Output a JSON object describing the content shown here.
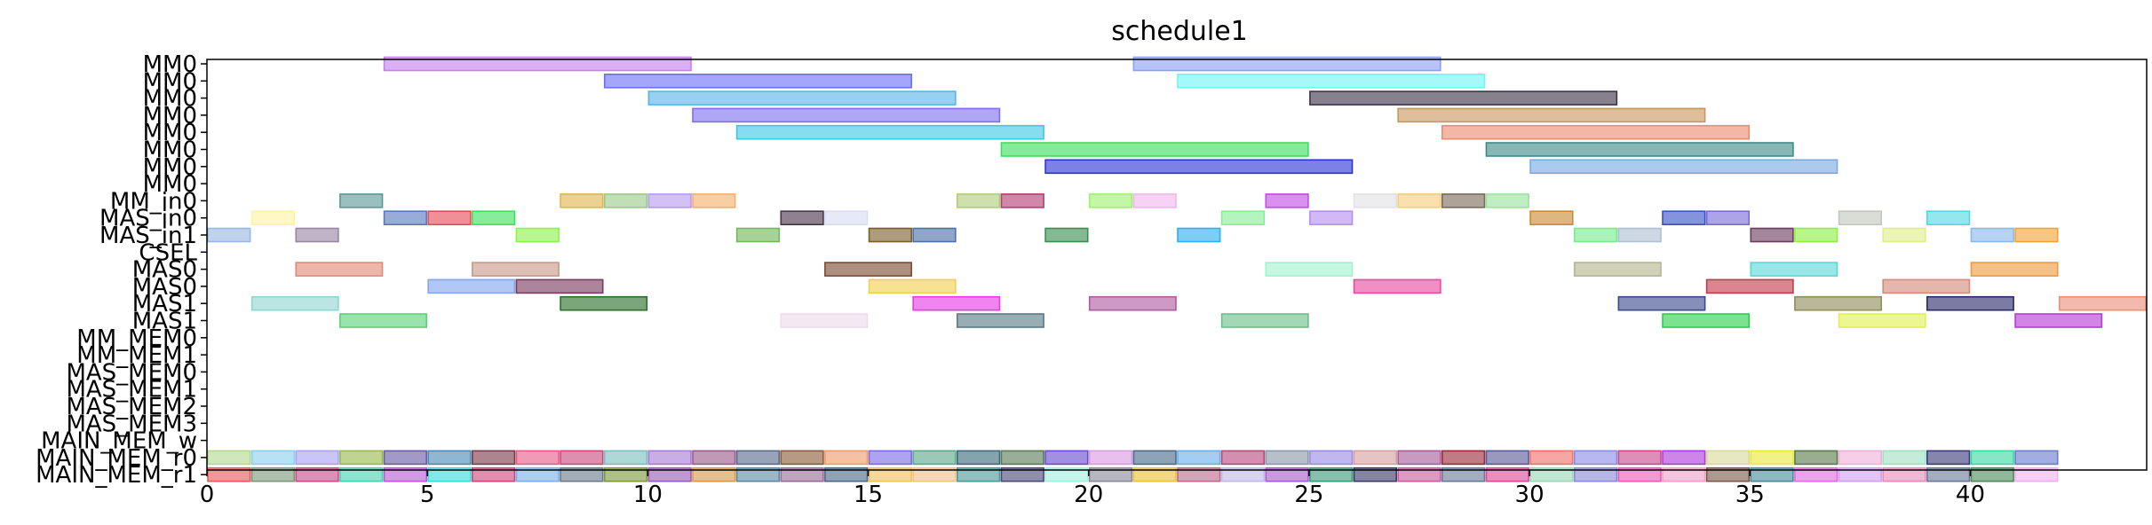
{
  "chart_data": {
    "type": "bar",
    "orientation": "horizontal",
    "title": "schedule1",
    "xlabel": "",
    "ylabel": "",
    "xlim": [
      0,
      44
    ],
    "xticks": [
      0,
      5,
      10,
      15,
      20,
      25,
      30,
      35,
      40
    ],
    "grid": false,
    "rows": [
      "MM0",
      "MM0",
      "MM0",
      "MM0",
      "MM0",
      "MM0",
      "MM0",
      "MM0",
      "MM_in0",
      "MAS_in0",
      "MAS_in1",
      "CSEL",
      "MAS0",
      "MAS0",
      "MAS1",
      "MAS1",
      "MM_MEM0",
      "MM_MEM1",
      "MAS_MEM0",
      "MAS_MEM1",
      "MAS_MEM2",
      "MAS_MEM3",
      "MAIN_MEM_w",
      "MAIN_MEM_r0",
      "MAIN_MEM_r1"
    ],
    "bars": [
      {
        "row": 0,
        "start": 4,
        "end": 11,
        "color": "#c77ff2"
      },
      {
        "row": 0,
        "start": 21,
        "end": 28,
        "color": "#8d9ef5"
      },
      {
        "row": 1,
        "start": 9,
        "end": 16,
        "color": "#6a70f5"
      },
      {
        "row": 1,
        "start": 22,
        "end": 29,
        "color": "#6ef5f5"
      },
      {
        "row": 2,
        "start": 10,
        "end": 17,
        "color": "#55b5ea"
      },
      {
        "row": 2,
        "start": 25,
        "end": 32,
        "color": "#3d3448"
      },
      {
        "row": 3,
        "start": 11,
        "end": 18,
        "color": "#7f6ff0"
      },
      {
        "row": 3,
        "start": 27,
        "end": 34,
        "color": "#c89760"
      },
      {
        "row": 4,
        "start": 12,
        "end": 19,
        "color": "#3ec6e6"
      },
      {
        "row": 4,
        "start": 28,
        "end": 35,
        "color": "#ea8c6e"
      },
      {
        "row": 5,
        "start": 18,
        "end": 25,
        "color": "#3ddd5e"
      },
      {
        "row": 5,
        "start": 29,
        "end": 36,
        "color": "#3e8b86"
      },
      {
        "row": 6,
        "start": 19,
        "end": 26,
        "color": "#2b33d6"
      },
      {
        "row": 6,
        "start": 30,
        "end": 37,
        "color": "#78aae2"
      },
      {
        "row": 8,
        "start": 3,
        "end": 4,
        "color": "#5a9898"
      },
      {
        "row": 8,
        "start": 8,
        "end": 9,
        "color": "#e2b54e"
      },
      {
        "row": 8,
        "start": 9,
        "end": 10,
        "color": "#9cc98a"
      },
      {
        "row": 8,
        "start": 10,
        "end": 11,
        "color": "#b69af2"
      },
      {
        "row": 8,
        "start": 11,
        "end": 12,
        "color": "#f6b06a"
      },
      {
        "row": 8,
        "start": 17,
        "end": 18,
        "color": "#b0cd78"
      },
      {
        "row": 8,
        "start": 18,
        "end": 19,
        "color": "#b63c72"
      },
      {
        "row": 8,
        "start": 20,
        "end": 21,
        "color": "#9ef26e"
      },
      {
        "row": 8,
        "start": 21,
        "end": 22,
        "color": "#f0b6ee"
      },
      {
        "row": 8,
        "start": 24,
        "end": 25,
        "color": "#c44ae8"
      },
      {
        "row": 8,
        "start": 26,
        "end": 27,
        "color": "#e2e2e6"
      },
      {
        "row": 8,
        "start": 27,
        "end": 28,
        "color": "#f5cd7a"
      },
      {
        "row": 8,
        "start": 28,
        "end": 29,
        "color": "#7a6a5a"
      },
      {
        "row": 8,
        "start": 29,
        "end": 30,
        "color": "#9ae49e"
      },
      {
        "row": 9,
        "start": 1,
        "end": 2,
        "color": "#fff3a3"
      },
      {
        "row": 9,
        "start": 4,
        "end": 5,
        "color": "#5a78c0"
      },
      {
        "row": 9,
        "start": 5,
        "end": 6,
        "color": "#e84a5a"
      },
      {
        "row": 9,
        "start": 6,
        "end": 7,
        "color": "#3de060"
      },
      {
        "row": 9,
        "start": 13,
        "end": 14,
        "color": "#4a3448"
      },
      {
        "row": 9,
        "start": 14,
        "end": 15,
        "color": "#d8dcf4"
      },
      {
        "row": 9,
        "start": 23,
        "end": 24,
        "color": "#86ee9a"
      },
      {
        "row": 9,
        "start": 25,
        "end": 26,
        "color": "#b48ef0"
      },
      {
        "row": 9,
        "start": 30,
        "end": 31,
        "color": "#c88a32"
      },
      {
        "row": 9,
        "start": 33,
        "end": 34,
        "color": "#3a50c8"
      },
      {
        "row": 9,
        "start": 34,
        "end": 35,
        "color": "#7a6ad8"
      },
      {
        "row": 9,
        "start": 37,
        "end": 38,
        "color": "#c4c6be"
      },
      {
        "row": 9,
        "start": 39,
        "end": 40,
        "color": "#52d8e0"
      },
      {
        "row": 10,
        "start": 0,
        "end": 1,
        "color": "#9ab8e2"
      },
      {
        "row": 10,
        "start": 2,
        "end": 3,
        "color": "#9a84a2"
      },
      {
        "row": 10,
        "start": 7,
        "end": 8,
        "color": "#8ef24e"
      },
      {
        "row": 10,
        "start": 12,
        "end": 13,
        "color": "#72b858"
      },
      {
        "row": 10,
        "start": 15,
        "end": 16,
        "color": "#7a5e2a"
      },
      {
        "row": 10,
        "start": 16,
        "end": 17,
        "color": "#4a70a8"
      },
      {
        "row": 10,
        "start": 19,
        "end": 20,
        "color": "#3a8e50"
      },
      {
        "row": 10,
        "start": 22,
        "end": 23,
        "color": "#2cb0ee"
      },
      {
        "row": 10,
        "start": 31,
        "end": 32,
        "color": "#78ec8c"
      },
      {
        "row": 10,
        "start": 32,
        "end": 33,
        "color": "#aec0d4"
      },
      {
        "row": 10,
        "start": 35,
        "end": 36,
        "color": "#6a3c5e"
      },
      {
        "row": 10,
        "start": 36,
        "end": 37,
        "color": "#8ef040"
      },
      {
        "row": 10,
        "start": 38,
        "end": 39,
        "color": "#e0ee8a"
      },
      {
        "row": 10,
        "start": 40,
        "end": 41,
        "color": "#8ab8ee"
      },
      {
        "row": 10,
        "start": 41,
        "end": 42,
        "color": "#f0a438"
      },
      {
        "row": 12,
        "start": 2,
        "end": 4,
        "color": "#de8a78"
      },
      {
        "row": 12,
        "start": 6,
        "end": 8,
        "color": "#c89888"
      },
      {
        "row": 12,
        "start": 14,
        "end": 16,
        "color": "#7a4a32"
      },
      {
        "row": 12,
        "start": 24,
        "end": 26,
        "color": "#a2f2ce"
      },
      {
        "row": 12,
        "start": 31,
        "end": 33,
        "color": "#b4b48e"
      },
      {
        "row": 12,
        "start": 35,
        "end": 37,
        "color": "#5ad6d6"
      },
      {
        "row": 12,
        "start": 40,
        "end": 42,
        "color": "#ee9a3a"
      },
      {
        "row": 13,
        "start": 5,
        "end": 7,
        "color": "#82a6ee"
      },
      {
        "row": 13,
        "start": 7,
        "end": 9,
        "color": "#7a3a5e"
      },
      {
        "row": 13,
        "start": 15,
        "end": 17,
        "color": "#f0d04e"
      },
      {
        "row": 13,
        "start": 26,
        "end": 28,
        "color": "#e84aa0"
      },
      {
        "row": 13,
        "start": 34,
        "end": 36,
        "color": "#c43a4a"
      },
      {
        "row": 13,
        "start": 38,
        "end": 40,
        "color": "#d48a7a"
      },
      {
        "row": 14,
        "start": 1,
        "end": 3,
        "color": "#8ed6d0"
      },
      {
        "row": 14,
        "start": 8,
        "end": 10,
        "color": "#2a6e2a"
      },
      {
        "row": 14,
        "start": 16,
        "end": 18,
        "color": "#e63ae8"
      },
      {
        "row": 14,
        "start": 20,
        "end": 22,
        "color": "#b05aa0"
      },
      {
        "row": 14,
        "start": 32,
        "end": 34,
        "color": "#3a4a8a"
      },
      {
        "row": 14,
        "start": 36,
        "end": 38,
        "color": "#8e8e5a"
      },
      {
        "row": 14,
        "start": 39,
        "end": 41,
        "color": "#2a2a6a"
      },
      {
        "row": 14,
        "start": 42,
        "end": 44,
        "color": "#e8907a"
      },
      {
        "row": 15,
        "start": 3,
        "end": 5,
        "color": "#5ad27a"
      },
      {
        "row": 15,
        "start": 13,
        "end": 15,
        "color": "#eedaea"
      },
      {
        "row": 15,
        "start": 17,
        "end": 19,
        "color": "#5a7a88"
      },
      {
        "row": 15,
        "start": 23,
        "end": 25,
        "color": "#6ac08a"
      },
      {
        "row": 15,
        "start": 33,
        "end": 35,
        "color": "#2ad04a"
      },
      {
        "row": 15,
        "start": 37,
        "end": 39,
        "color": "#e0f050"
      },
      {
        "row": 15,
        "start": 41,
        "end": 43,
        "color": "#b83ad8"
      }
    ],
    "memory_rows": [
      {
        "row": 23,
        "colors": [
          "#b0da90",
          "#8ad0f0",
          "#a8a2f0",
          "#9ab84a",
          "#6a5aa8",
          "#4a8ab8",
          "#7a3a4a",
          "#e85a8a",
          "#c84a7a",
          "#7ac0c0",
          "#a87ad8",
          "#9a5a8a",
          "#5a6a8a",
          "#8a5a3a",
          "#f09a6a",
          "#7a6ae8",
          "#5aa88a",
          "#3a6a7a",
          "#5a7a5a",
          "#6a4ad0",
          "#d89ae0",
          "#4a6a8a",
          "#6aaee8",
          "#b84a7a",
          "#8a9aa8",
          "#9a8ae8",
          "#d8a0a0",
          "#a85a9a",
          "#9a2a3a",
          "#5a5a9a",
          "#f0706a",
          "#8a8ae8",
          "#c84a8a",
          "#b03ad8",
          "#d8d89a",
          "#e8e83a",
          "#5a7a4a",
          "#f0b0d8",
          "#a0e0c0",
          "#3a3a7a",
          "#3ad8a0",
          "#6a7ad0"
        ]
      },
      {
        "row": 24,
        "colors": [
          "#e85a5a",
          "#7a9a7a",
          "#c84a8a",
          "#4ad0b0",
          "#b85ad8",
          "#3ad8d8",
          "#c84a7a",
          "#7aaee8",
          "#6a7a8a",
          "#7a9a3a",
          "#9a5ab8",
          "#d89a4a",
          "#5a8aa8",
          "#9a6a9a",
          "#4a6a8a",
          "#f0c05a",
          "#f0c08a",
          "#4a9a9a",
          "#4a4a7a",
          "#a0f0e0",
          "#8a8a9a",
          "#e8c03a",
          "#b86a8a",
          "#c0b8e8",
          "#a85ad0",
          "#3a9a7a",
          "#3a3a6a",
          "#c85aa0",
          "#6a7a9a",
          "#d84a9a",
          "#9ad8b8",
          "#8a8ad8",
          "#e85ab8",
          "#f0a0c8",
          "#7a5a4a",
          "#4a8a9a",
          "#e06ae0",
          "#d0a0f0",
          "#e88ab8",
          "#6a7a9a",
          "#4a8a5a",
          "#f0b0f0"
        ]
      }
    ]
  }
}
